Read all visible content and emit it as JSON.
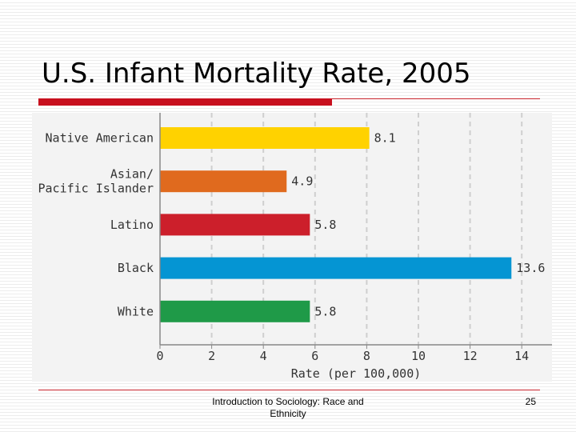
{
  "slide": {
    "title": "U.S. Infant Mortality Rate, 2005",
    "footer": "Introduction to Sociology: Race and Ethnicity",
    "page_number": "25"
  },
  "chart_data": {
    "type": "bar",
    "orientation": "horizontal",
    "categories": [
      [
        "Native American"
      ],
      [
        "Asian/",
        "Pacific Islander"
      ],
      [
        "Latino"
      ],
      [
        "Black"
      ],
      [
        "White"
      ]
    ],
    "values": [
      8.1,
      4.9,
      5.8,
      13.6,
      5.8
    ],
    "value_labels": [
      "8.1",
      "4.9",
      "5.8",
      "13.6",
      "5.8"
    ],
    "colors": [
      "#ffd200",
      "#e06a1e",
      "#cc1f2b",
      "#0595d3",
      "#1f9a48"
    ],
    "xlabel": "Rate (per 100,000)",
    "ylabel": "",
    "xlim": [
      0,
      15
    ],
    "xticks": [
      0,
      2,
      4,
      6,
      8,
      10,
      12,
      14
    ],
    "grid": "vertical dashed",
    "background": "#f3f3f3"
  }
}
